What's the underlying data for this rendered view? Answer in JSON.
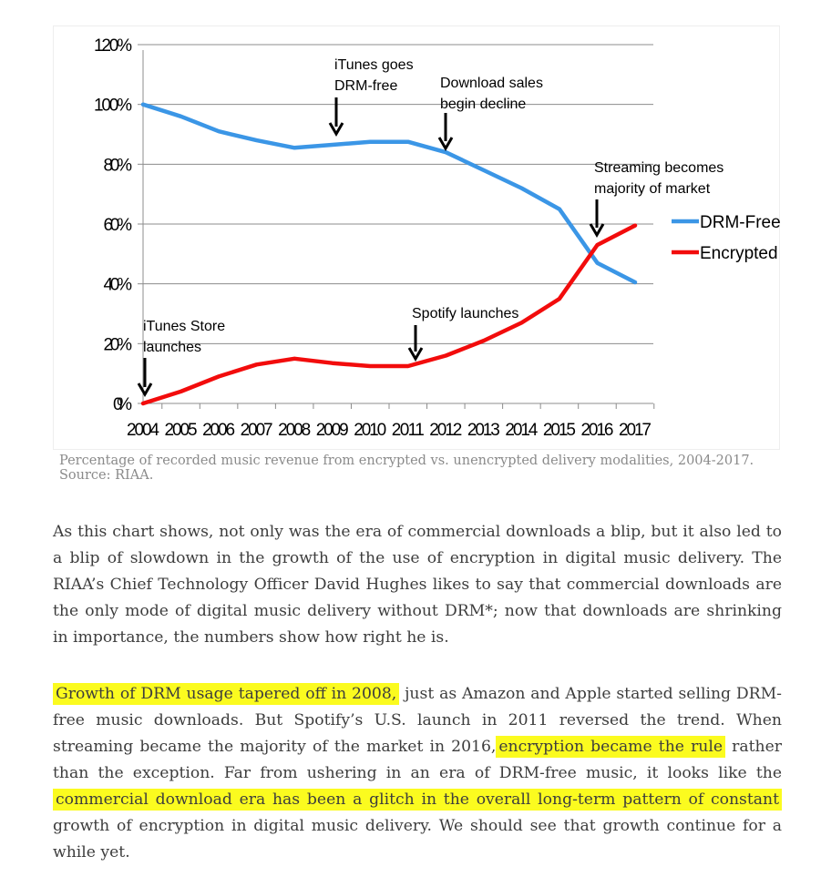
{
  "chart_data": {
    "type": "line",
    "x": [
      2004,
      2005,
      2006,
      2007,
      2008,
      2009,
      2010,
      2011,
      2012,
      2013,
      2014,
      2015,
      2016,
      2017
    ],
    "categories": [
      "2004",
      "2005",
      "2006",
      "2007",
      "2008",
      "2009",
      "2010",
      "2011",
      "2012",
      "2013",
      "2014",
      "2015",
      "2016",
      "2017"
    ],
    "series": [
      {
        "name": "DRM-Free",
        "color": "#3b96e6",
        "values": [
          100,
          96,
          91,
          88,
          85.5,
          86.5,
          87.5,
          87.5,
          84,
          78,
          72,
          65,
          47,
          40.5
        ]
      },
      {
        "name": "Encrypted",
        "color": "#f20c0c",
        "values": [
          0,
          4,
          9,
          13,
          15,
          13.5,
          12.5,
          12.5,
          16,
          21,
          27,
          35,
          53,
          59.5
        ]
      }
    ],
    "ylim": [
      0,
      120
    ],
    "yticks": [
      "0%",
      "20%",
      "40%",
      "60%",
      "80%",
      "100%",
      "120%"
    ],
    "grid": true,
    "legend_placement": "right",
    "annotations": [
      {
        "lines": [
          "iTunes Store",
          "launches"
        ],
        "x": 2004,
        "arrow_to": 0
      },
      {
        "lines": [
          "iTunes goes",
          "DRM-free"
        ],
        "x": 2009,
        "arrow_to": 86.5
      },
      {
        "lines": [
          "Download sales",
          "begin decline"
        ],
        "x": 2012,
        "arrow_to": 85
      },
      {
        "lines": [
          "Spotify launches"
        ],
        "x": 2011,
        "arrow_to": 12.5
      },
      {
        "lines": [
          "Streaming becomes",
          "majority of market"
        ],
        "x": 2016,
        "arrow_to": 54
      }
    ]
  },
  "caption": {
    "line1": "Percentage of recorded music revenue from encrypted vs. unencrypted delivery modalities, 2004-2017.",
    "line2": "Source: RIAA."
  },
  "paragraph1": "As this chart shows, not only was the era of commercial downloads a blip, but it also led to a blip of slowdown in the growth of the use of encryption in digital music delivery. The RIAA’s Chief Technology Officer David Hughes likes to say that commercial downloads are the only mode of digital music delivery without DRM*; now that downloads are shrinking in importance, the numbers show how right he is.",
  "paragraph2": {
    "hl1": "Growth of DRM usage tapered off in 2008,",
    "text1": " just as Amazon and Apple started selling DRM-free music downloads. But Spotify’s U.S. launch in 2011 reversed the trend. When streaming became the majority of the market in 2016,",
    "hl2": "encryption became the rule",
    "text2": " rather than the exception. Far from ushering in an era of DRM-free music, it looks like the ",
    "hl3": "commercial download era has been a glitch in the overall long-term pattern of constant",
    "text3": " growth of encryption in digital music delivery. We should see that growth continue for a while yet."
  },
  "colors": {
    "highlight": "#fbfb1f",
    "drm_free": "#3b96e6",
    "encrypted": "#f20c0c",
    "grid": "#888888"
  }
}
